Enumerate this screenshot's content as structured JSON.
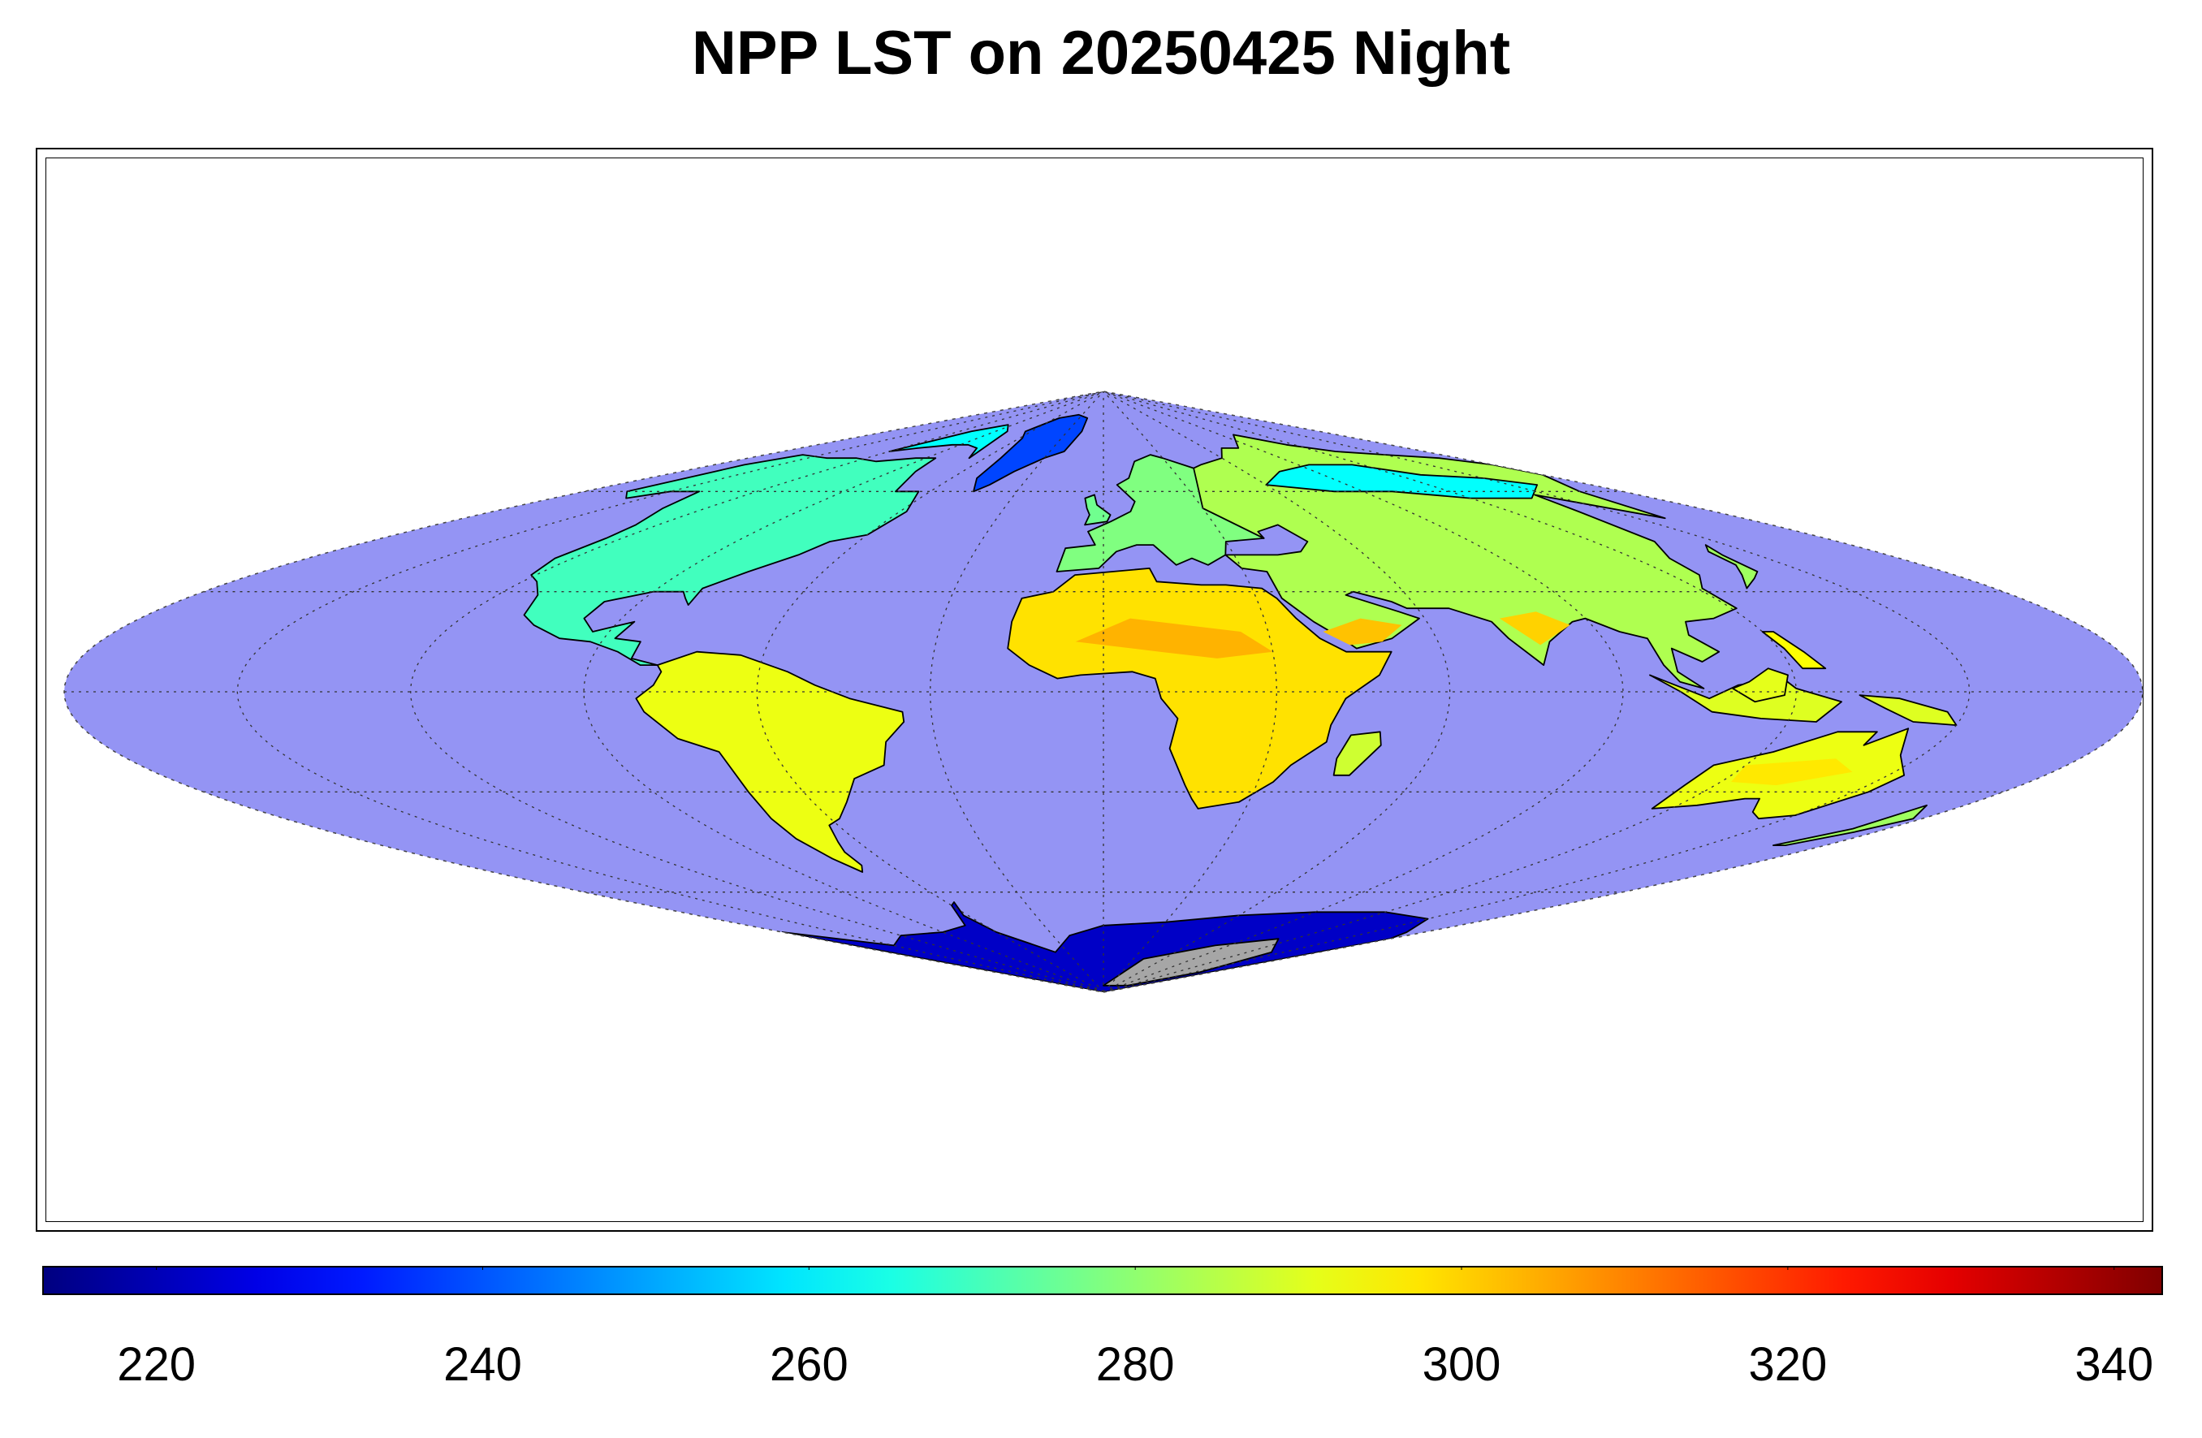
{
  "title": "NPP LST on 20250425 Night",
  "map": {
    "projection": "sinusoidal",
    "ocean_color": "#9494f4",
    "coastline_color": "#000000",
    "gridline_style": "dotted",
    "no_data_color": "#a6a6a6"
  },
  "colorbar": {
    "colormap": "jet",
    "min": 213,
    "max": 343,
    "ticks": [
      {
        "value": 220,
        "label": "220"
      },
      {
        "value": 240,
        "label": "240"
      },
      {
        "value": 260,
        "label": "260"
      },
      {
        "value": 280,
        "label": "280"
      },
      {
        "value": 300,
        "label": "300"
      },
      {
        "value": 320,
        "label": "320"
      },
      {
        "value": 340,
        "label": "340"
      }
    ]
  }
}
